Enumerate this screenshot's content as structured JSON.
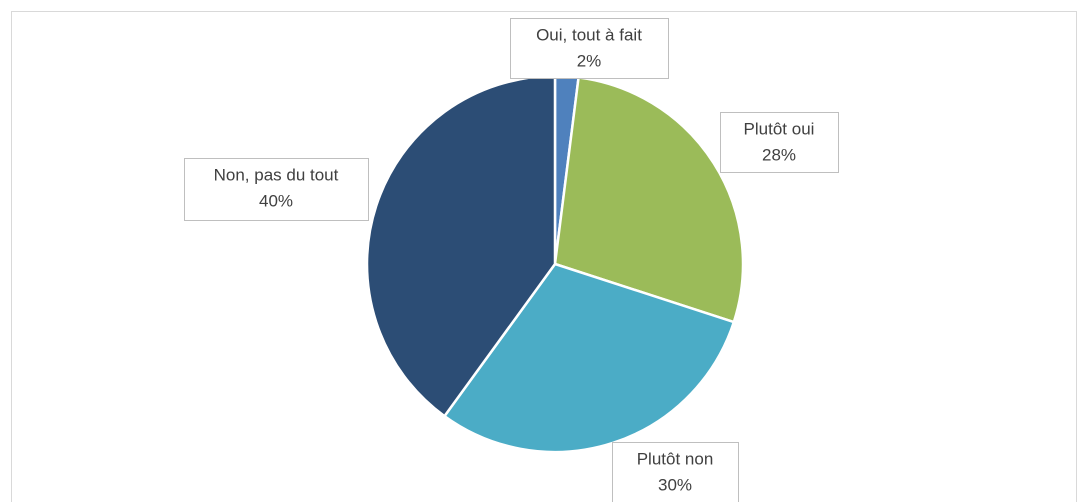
{
  "chart_data": {
    "type": "pie",
    "categories": [
      "Oui, tout à fait",
      "Plutôt oui",
      "Plutôt non",
      "Non, pas du tout"
    ],
    "values": [
      2,
      28,
      30,
      40
    ],
    "value_labels": [
      "2%",
      "28%",
      "30%",
      "40%"
    ],
    "colors": [
      "#4f81bd",
      "#9bbb59",
      "#4bacc6",
      "#2c4d75"
    ]
  }
}
